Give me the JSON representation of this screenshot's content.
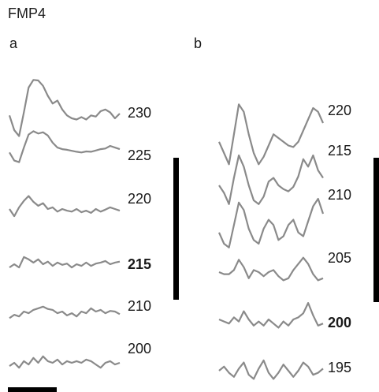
{
  "title": "FMP4",
  "panels": [
    {
      "label": "a",
      "traces": [
        {
          "label": "230",
          "bold": false,
          "values": [
            0.35,
            0.1,
            0.0,
            0.4,
            0.82,
            0.95,
            0.94,
            0.85,
            0.68,
            0.55,
            0.6,
            0.45,
            0.35,
            0.3,
            0.28,
            0.32,
            0.28,
            0.35,
            0.33,
            0.42,
            0.45,
            0.4,
            0.3,
            0.38
          ]
        },
        {
          "label": "225",
          "bold": false,
          "values": [
            0.3,
            0.05,
            0.0,
            0.45,
            0.85,
            0.95,
            0.88,
            0.92,
            0.82,
            0.6,
            0.45,
            0.4,
            0.38,
            0.35,
            0.32,
            0.3,
            0.33,
            0.32,
            0.36,
            0.4,
            0.42,
            0.5,
            0.45,
            0.4
          ]
        },
        {
          "label": "220",
          "bold": false,
          "values": [
            0.5,
            0.28,
            0.55,
            0.75,
            0.9,
            0.72,
            0.6,
            0.68,
            0.5,
            0.55,
            0.42,
            0.5,
            0.45,
            0.42,
            0.5,
            0.4,
            0.45,
            0.38,
            0.5,
            0.42,
            0.48,
            0.55,
            0.5,
            0.45
          ]
        },
        {
          "label": "215",
          "bold": true,
          "values": [
            0.4,
            0.5,
            0.4,
            0.72,
            0.65,
            0.55,
            0.65,
            0.5,
            0.58,
            0.45,
            0.55,
            0.48,
            0.52,
            0.4,
            0.5,
            0.45,
            0.55,
            0.45,
            0.52,
            0.55,
            0.6,
            0.5,
            0.55,
            0.58
          ]
        },
        {
          "label": "210",
          "bold": false,
          "values": [
            0.3,
            0.4,
            0.35,
            0.5,
            0.45,
            0.55,
            0.6,
            0.65,
            0.58,
            0.55,
            0.45,
            0.5,
            0.38,
            0.45,
            0.35,
            0.5,
            0.45,
            0.6,
            0.5,
            0.55,
            0.45,
            0.52,
            0.5,
            0.42
          ]
        },
        {
          "label": "200",
          "bold": false,
          "values": [
            0.4,
            0.5,
            0.35,
            0.55,
            0.45,
            0.65,
            0.5,
            0.7,
            0.55,
            0.5,
            0.6,
            0.45,
            0.55,
            0.5,
            0.55,
            0.5,
            0.6,
            0.55,
            0.45,
            0.35,
            0.5,
            0.55,
            0.45,
            0.5
          ]
        }
      ]
    },
    {
      "label": "b",
      "traces": [
        {
          "label": "220",
          "bold": false,
          "values": [
            0.45,
            0.3,
            0.15,
            0.55,
            0.95,
            0.85,
            0.55,
            0.3,
            0.15,
            0.25,
            0.4,
            0.55,
            0.5,
            0.45,
            0.4,
            0.38,
            0.45,
            0.6,
            0.75,
            0.9,
            0.85,
            0.7
          ]
        },
        {
          "label": "215",
          "bold": false,
          "values": [
            0.5,
            0.4,
            0.25,
            0.6,
            0.9,
            0.75,
            0.5,
            0.3,
            0.25,
            0.35,
            0.55,
            0.6,
            0.5,
            0.45,
            0.42,
            0.48,
            0.62,
            0.85,
            0.75,
            0.9,
            0.7,
            0.6
          ]
        },
        {
          "label": "210",
          "bold": false,
          "values": [
            0.45,
            0.3,
            0.25,
            0.55,
            0.85,
            0.75,
            0.5,
            0.35,
            0.3,
            0.5,
            0.62,
            0.55,
            0.35,
            0.4,
            0.55,
            0.62,
            0.45,
            0.4,
            0.6,
            0.8,
            0.9,
            0.7
          ]
        },
        {
          "label": "205",
          "bold": false,
          "values": [
            0.5,
            0.45,
            0.45,
            0.55,
            0.8,
            0.62,
            0.35,
            0.55,
            0.5,
            0.4,
            0.5,
            0.55,
            0.4,
            0.3,
            0.35,
            0.55,
            0.7,
            0.85,
            0.7,
            0.45,
            0.3,
            0.35
          ]
        },
        {
          "label": "200",
          "bold": true,
          "values": [
            0.5,
            0.45,
            0.4,
            0.55,
            0.45,
            0.7,
            0.5,
            0.35,
            0.45,
            0.35,
            0.5,
            0.4,
            0.3,
            0.45,
            0.35,
            0.5,
            0.55,
            0.65,
            0.9,
            0.6,
            0.35,
            0.4
          ]
        },
        {
          "label": "195",
          "bold": false,
          "values": [
            0.5,
            0.6,
            0.45,
            0.35,
            0.55,
            0.7,
            0.4,
            0.3,
            0.55,
            0.75,
            0.45,
            0.3,
            0.45,
            0.65,
            0.5,
            0.35,
            0.5,
            0.7,
            0.6,
            0.4,
            0.45,
            0.55
          ]
        }
      ]
    }
  ]
}
